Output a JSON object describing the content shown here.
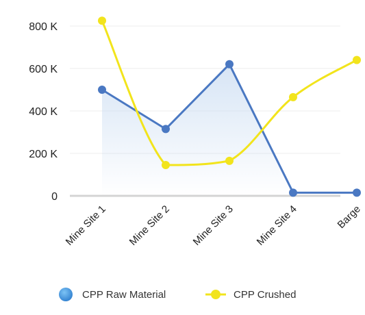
{
  "chart_data": {
    "type": "line",
    "title": "",
    "xlabel": "",
    "ylabel": "",
    "categories": [
      "Mine Site 1",
      "Mine Site 2",
      "Mine Site 3",
      "Mine Site 4",
      "Barge"
    ],
    "ylim": [
      0,
      800000
    ],
    "yticks": [
      {
        "value": 0,
        "label": "0"
      },
      {
        "value": 200000,
        "label": "200 K"
      },
      {
        "value": 400000,
        "label": "400 K"
      },
      {
        "value": 600000,
        "label": "600 K"
      },
      {
        "value": 800000,
        "label": "800 K"
      }
    ],
    "grid": true,
    "legend_position": "bottom",
    "series": [
      {
        "name": "CPP Raw Material",
        "color": "#4a78c2",
        "style": "straight-area",
        "values": [
          500000,
          315000,
          620000,
          15000,
          15000
        ]
      },
      {
        "name": "CPP Crushed",
        "color": "#f2e41c",
        "style": "smooth",
        "values": [
          825000,
          145000,
          165000,
          465000,
          640000
        ]
      }
    ]
  }
}
